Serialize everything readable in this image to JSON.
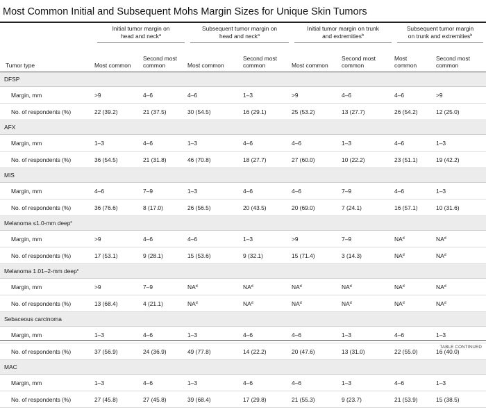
{
  "title": "Most Common Initial and Subsequent Mohs Margin Sizes for Unique Skin Tumors",
  "group_headers": [
    {
      "text": "Initial tumor margin on head and neck",
      "sup": "a"
    },
    {
      "text": "Subsequent tumor margin on head and neck",
      "sup": "a"
    },
    {
      "text": "Initial tumor margin on trunk and extremities",
      "sup": "b"
    },
    {
      "text": "Subsequent tumor margin on trunk and extremities",
      "sup": "b"
    }
  ],
  "column_headers": {
    "tumor_type": "Tumor type",
    "most_common": "Most common",
    "second_most_common": "Second most common"
  },
  "row_labels": {
    "margin": "Margin, mm",
    "respondents": "No. of respondents (%)"
  },
  "sections": [
    {
      "name": "DFSP",
      "sup": "",
      "margin": [
        "&gt;9",
        "4–6",
        "4–6",
        "1–3",
        "&gt;9",
        "4–6",
        "4–6",
        "&gt;9"
      ],
      "respondents": [
        "22 (39.2)",
        "21 (37.5)",
        "30 (54.5)",
        "16 (29.1)",
        "25 (53.2)",
        "13 (27.7)",
        "26 (54.2)",
        "12 (25.0)"
      ]
    },
    {
      "name": "AFX",
      "sup": "",
      "margin": [
        "1–3",
        "4–6",
        "1–3",
        "4–6",
        "4–6",
        "1–3",
        "4–6",
        "1–3"
      ],
      "respondents": [
        "36 (54.5)",
        "21 (31.8)",
        "46 (70.8)",
        "18 (27.7)",
        "27 (60.0)",
        "10 (22.2)",
        "23 (51.1)",
        "19 (42.2)"
      ]
    },
    {
      "name": "MIS",
      "sup": "",
      "margin": [
        "4–6",
        "7–9",
        "1–3",
        "4–6",
        "4–6",
        "7–9",
        "4–6",
        "1–3"
      ],
      "respondents": [
        "36 (76.6)",
        "8 (17.0)",
        "26 (56.5)",
        "20 (43.5)",
        "20 (69.0)",
        "7 (24.1)",
        "16 (57.1)",
        "10 (31.6)"
      ]
    },
    {
      "name": "Melanoma ≤1.0-mm deep",
      "sup": "c",
      "margin": [
        "&gt;9",
        "4–6",
        "4–6",
        "1–3",
        "&gt;9",
        "7–9",
        "NA|d",
        "NA|d"
      ],
      "respondents": [
        "17 (53.1)",
        "9 (28.1)",
        "15 (53.6)",
        "9 (32.1)",
        "15 (71.4)",
        "3 (14.3)",
        "NA|d",
        "NA|d"
      ]
    },
    {
      "name": "Melanoma 1.01–2-mm deep",
      "sup": "c",
      "margin": [
        "&gt;9",
        "7–9",
        "NA|d",
        "NA|d",
        "NA|d",
        "NA|d",
        "NA|d",
        "NA|d"
      ],
      "respondents": [
        "13 (68.4)",
        "4 (21.1)",
        "NA|d",
        "NA|d",
        "NA|d",
        "NA|d",
        "NA|d",
        "NA|d"
      ]
    },
    {
      "name": "Sebaceous carcinoma",
      "sup": "",
      "margin": [
        "1–3",
        "4–6",
        "1–3",
        "4–6",
        "4–6",
        "1–3",
        "4–6",
        "1–3"
      ],
      "respondents": [
        "37 (56.9)",
        "24 (36.9)",
        "49 (77.8)",
        "14 (22.2)",
        "20 (47.6)",
        "13 (31.0)",
        "22 (55.0)",
        "16 (40.0)"
      ]
    },
    {
      "name": "MAC",
      "sup": "",
      "margin": [
        "1–3",
        "4–6",
        "1–3",
        "4–6",
        "4–6",
        "1–3",
        "4–6",
        "1–3"
      ],
      "respondents": [
        "27 (45.8)",
        "27 (45.8)",
        "39 (68.4)",
        "17 (29.8)",
        "21 (55.3)",
        "9 (23.7)",
        "21 (53.9)",
        "15 (38.5)"
      ]
    }
  ],
  "footer": "TABLE CONTINUED"
}
